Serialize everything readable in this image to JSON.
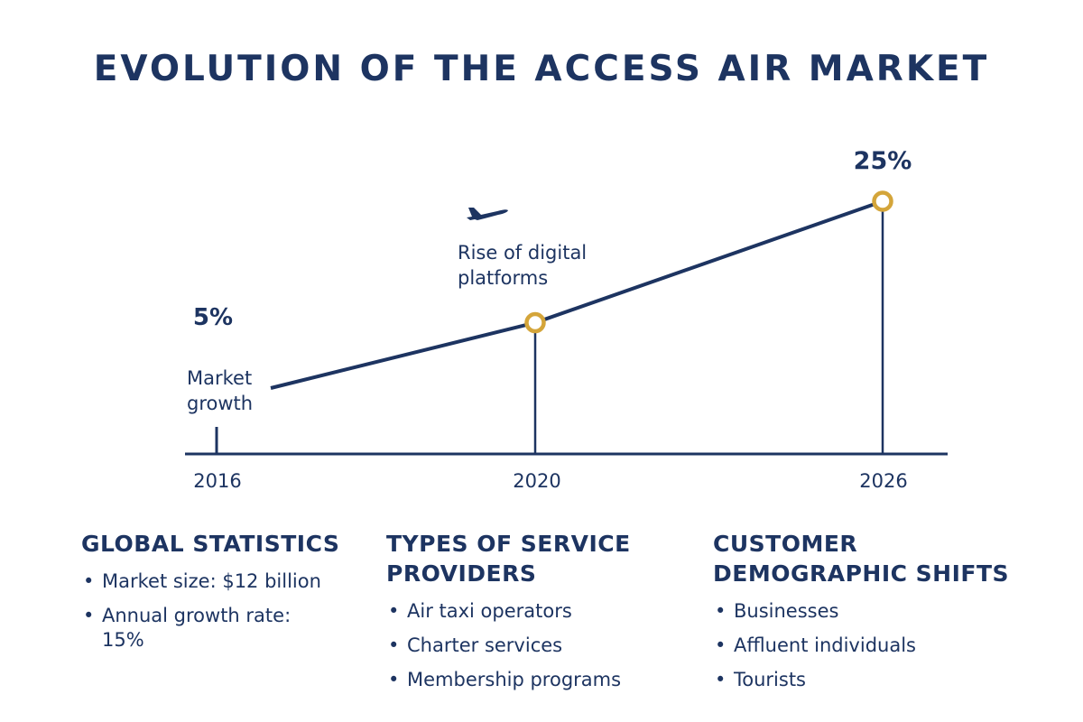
{
  "title": "EVOLUTION OF THE ACCESS AIR MARKET",
  "colors": {
    "primary": "#1d3461",
    "accent": "#d4a53a",
    "background": "#ffffff"
  },
  "chart_data": {
    "type": "line",
    "title": "",
    "xlabel": "",
    "ylabel": "",
    "x_ticks": [
      "2016",
      "2020",
      "2026"
    ],
    "value_labels": [
      "5%",
      "25%"
    ],
    "points": [
      {
        "x": 2016,
        "y": 5
      },
      {
        "x": 2020,
        "y": 12
      },
      {
        "x": 2026,
        "y": 25
      }
    ],
    "highlighted_x": [
      2020,
      2026
    ],
    "annotations": [
      {
        "text": "Market growth",
        "x": 2016
      },
      {
        "text": "Rise of digital platforms",
        "x": 2020,
        "icon": "airplane-icon"
      }
    ]
  },
  "sections": [
    {
      "heading": "GLOBAL STATISTICS",
      "items": [
        "Market size: $12 billion",
        "Annual growth rate: 15%"
      ]
    },
    {
      "heading": "TYPES OF SERVICE PROVIDERS",
      "items": [
        "Air taxi operators",
        "Charter services",
        "Membership programs"
      ]
    },
    {
      "heading": "CUSTOMER DEMOGRAPHIC SHIFTS",
      "items": [
        "Businesses",
        "Affluent individuals",
        "Tourists"
      ]
    }
  ]
}
